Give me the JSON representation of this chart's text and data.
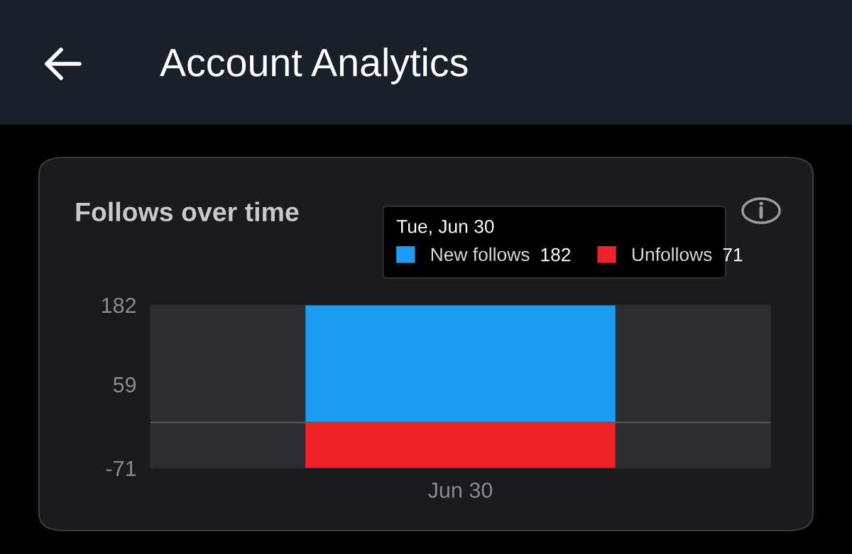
{
  "chart_data": {
    "type": "bar",
    "title": "Account Analytics",
    "subtitle": "Follows over time",
    "categories": [
      "Jun 30"
    ],
    "series": [
      {
        "name": "New follows",
        "color": "#1d9bf0",
        "values": [
          182
        ]
      },
      {
        "name": "Unfollows",
        "color": "#f0212a",
        "values": [
          -71
        ]
      }
    ],
    "annotations": [
      "182",
      "71"
    ],
    "stacked": true,
    "legend_title": "Tue, Jun 30",
    "legend": "top right",
    "ylim": [
      -71,
      182
    ],
    "yticks": [
      182,
      59,
      -71
    ],
    "ref_lines": [
      {
        "axis": "y",
        "value": 0,
        "color": "#5a5c60"
      }
    ],
    "grid": false
  }
}
